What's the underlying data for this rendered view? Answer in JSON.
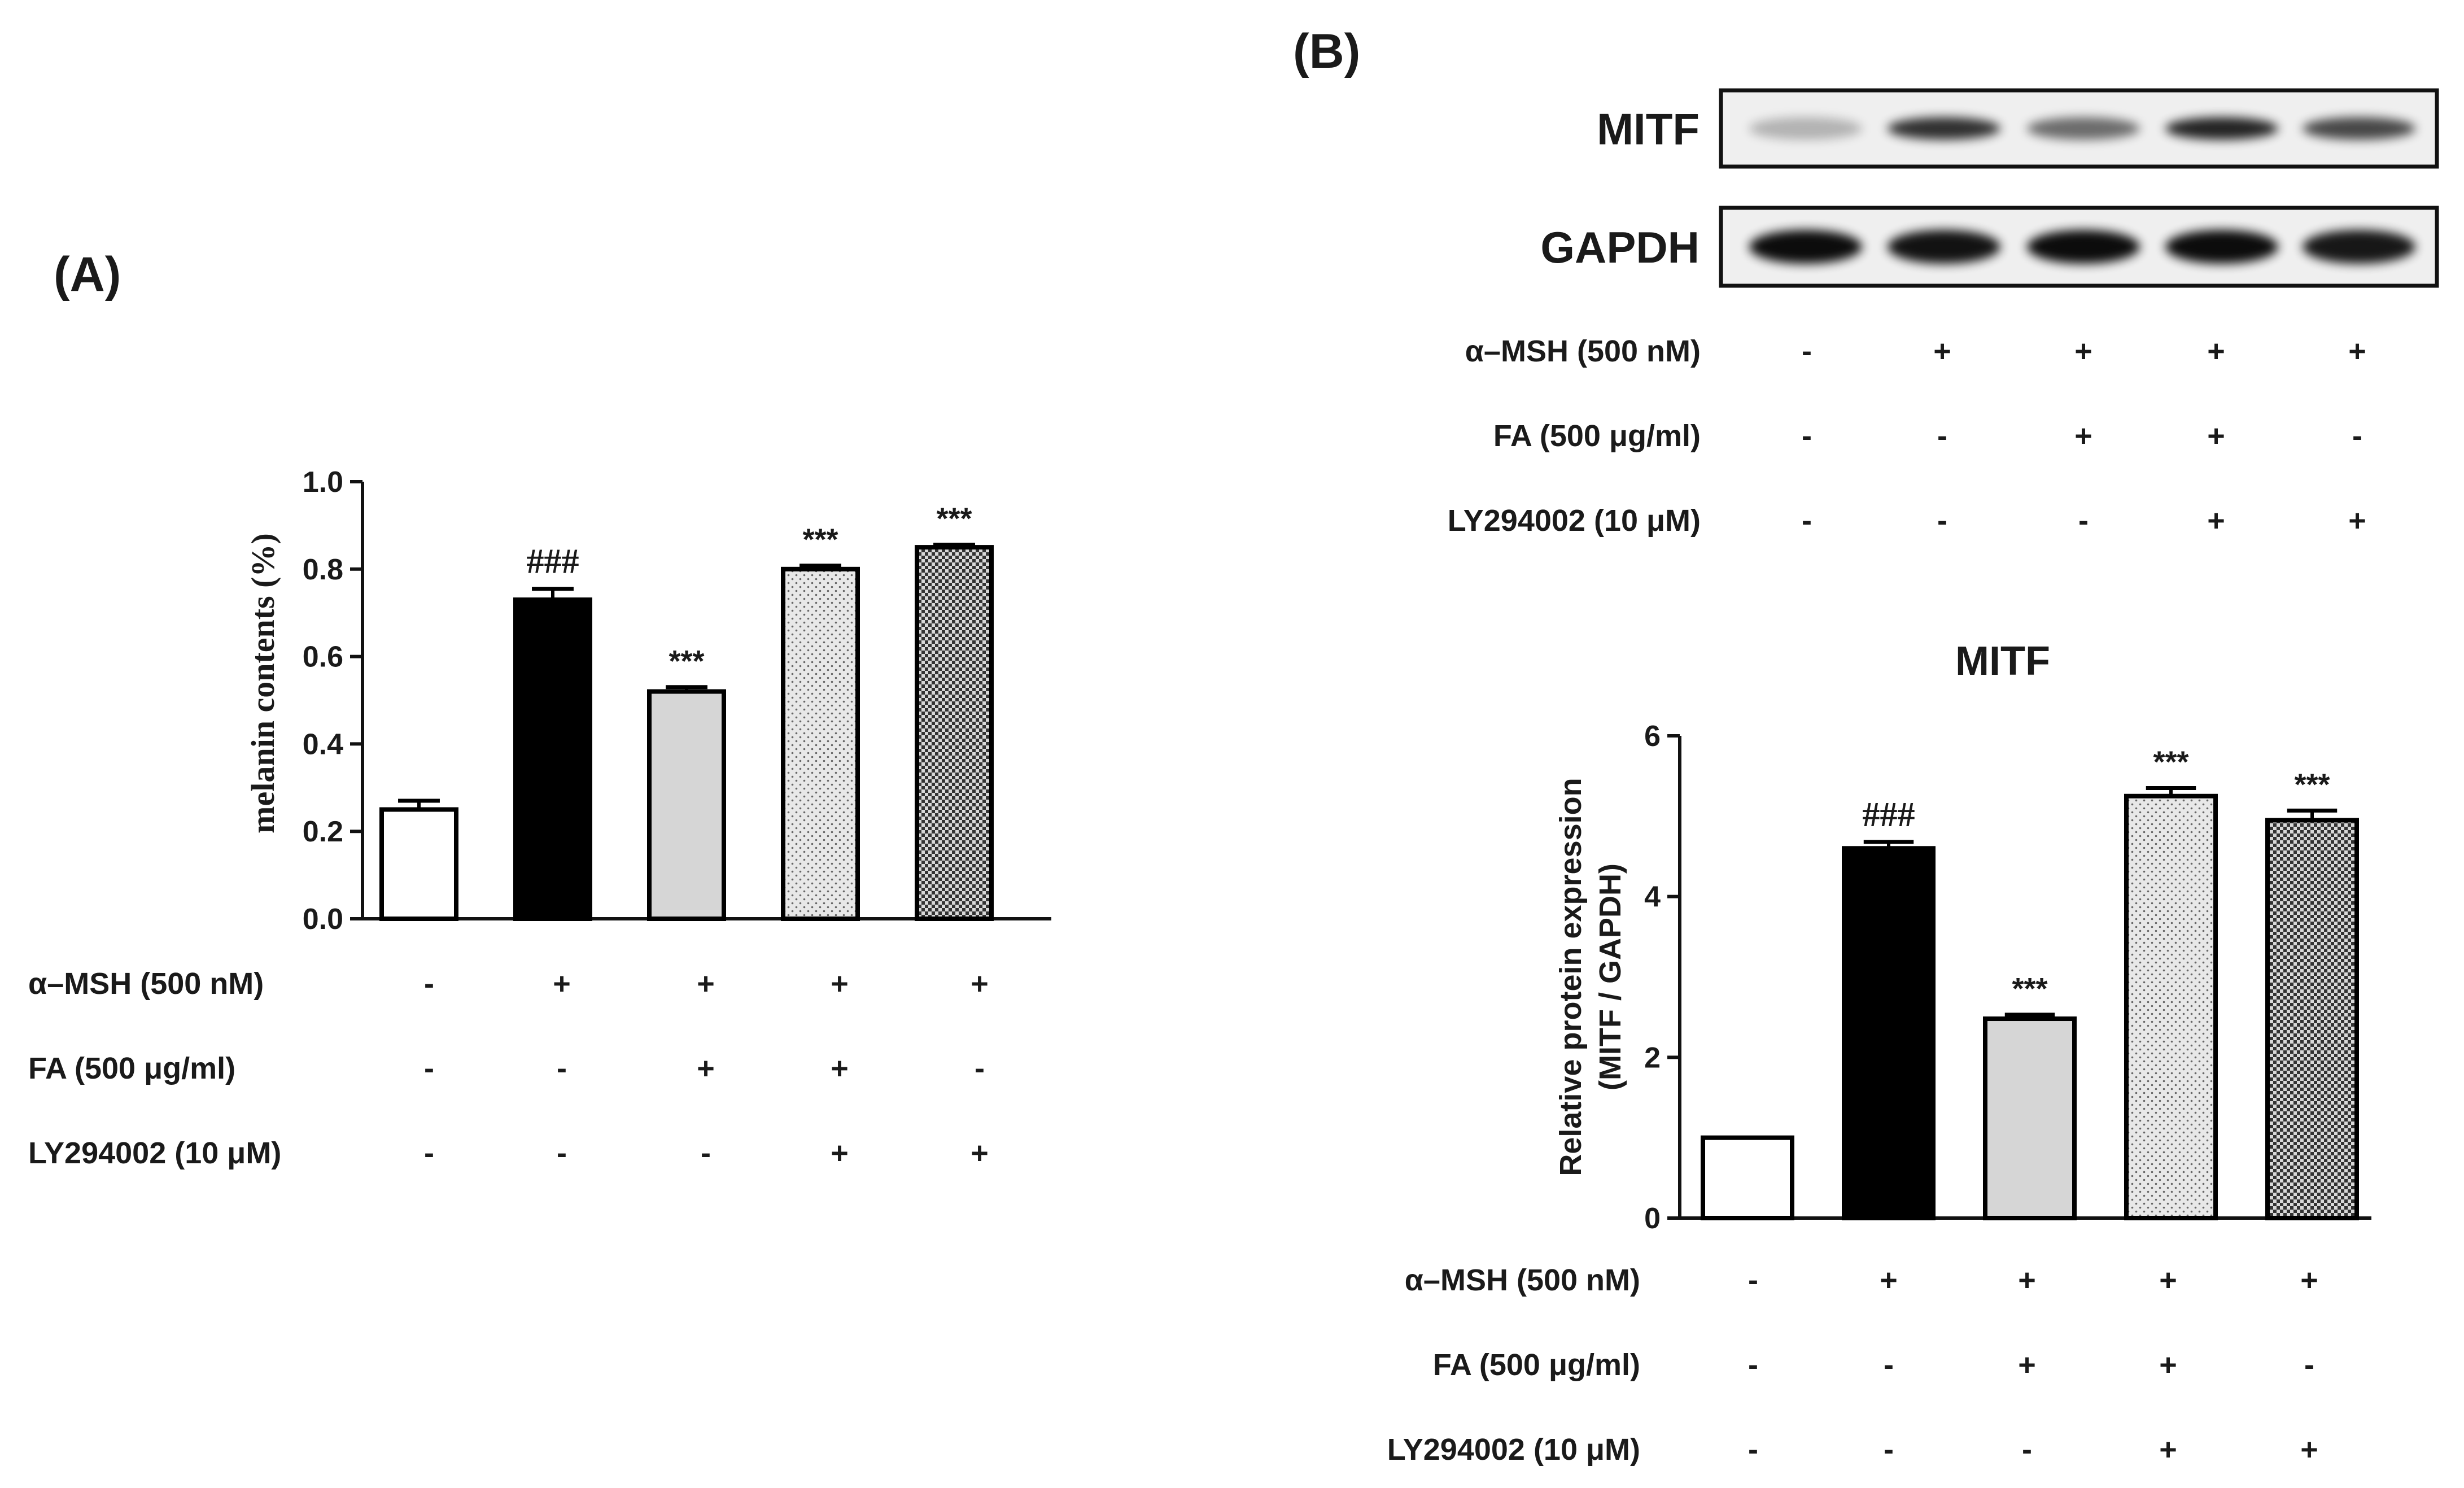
{
  "panels": {
    "A": {
      "label": "(A)"
    },
    "B": {
      "label": "(B)"
    }
  },
  "treatment_labels": [
    "α–MSH (500 nM)",
    "FA (500 μg/ml)",
    "LY294002 (10 μM)"
  ],
  "treatment_matrix": [
    [
      "-",
      "+",
      "+",
      "+",
      "+"
    ],
    [
      "-",
      "-",
      "+",
      "+",
      "-"
    ],
    [
      "-",
      "-",
      "-",
      "+",
      "+"
    ]
  ],
  "blot": {
    "rows": [
      {
        "label": "MITF",
        "intensities": [
          0.25,
          0.8,
          0.55,
          0.85,
          0.7
        ]
      },
      {
        "label": "GAPDH",
        "intensities": [
          0.95,
          0.92,
          0.95,
          0.95,
          0.9
        ]
      }
    ]
  },
  "colors": {
    "black": "#000000",
    "light_gray": "#d6d6d6",
    "white": "#ffffff",
    "dot_gray": "#e8e8e8",
    "check_dark": "#555555"
  },
  "chart_data": [
    {
      "type": "bar",
      "panel": "A",
      "title": "",
      "ylabel": "melanin contents (%)",
      "xlabel": "",
      "ylim": [
        0,
        1.0
      ],
      "yticks": [
        "0.0",
        "0.2",
        "0.4",
        "0.6",
        "0.8",
        "1.0"
      ],
      "values": [
        0.25,
        0.73,
        0.52,
        0.8,
        0.85
      ],
      "errors": [
        0.02,
        0.025,
        0.01,
        0.008,
        0.006
      ],
      "fills": [
        "white",
        "black",
        "lightgray",
        "dotted",
        "checker"
      ],
      "annotations": [
        "",
        "###",
        "***",
        "***",
        "***"
      ]
    },
    {
      "type": "bar",
      "panel": "B",
      "title": "MITF",
      "ylabel": "Relative protein expression",
      "ylabel2": "(MITF / GAPDH)",
      "xlabel": "",
      "ylim": [
        0,
        6
      ],
      "yticks": [
        "0",
        "2",
        "4",
        "6"
      ],
      "values": [
        1.0,
        4.6,
        2.48,
        5.25,
        4.95
      ],
      "errors": [
        0.0,
        0.08,
        0.05,
        0.1,
        0.12
      ],
      "fills": [
        "white",
        "black",
        "lightgray",
        "dotted",
        "checker"
      ],
      "annotations": [
        "",
        "###",
        "***",
        "***",
        "***"
      ]
    }
  ]
}
